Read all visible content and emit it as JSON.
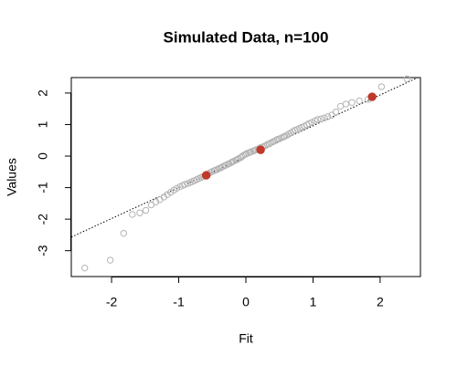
{
  "chart_data": {
    "type": "scatter",
    "title": "Simulated Data, n=100",
    "xlabel": "Fit",
    "ylabel": "Values",
    "xlim": [
      -2.6,
      2.6
    ],
    "ylim": [
      -3.82,
      2.49
    ],
    "xticks": [
      -2,
      -1,
      0,
      1,
      2
    ],
    "yticks": [
      -3,
      -2,
      -1,
      0,
      1,
      2
    ],
    "abline": {
      "intercept": -0.02,
      "slope": 0.98,
      "color": "#000000",
      "style": "dotted"
    },
    "series": [
      {
        "color": "#b4b4b4",
        "marker": "open-circle",
        "x": [
          -2.4,
          -2.02,
          -1.82,
          -1.69,
          -1.58,
          -1.49,
          -1.41,
          -1.34,
          -1.28,
          -1.22,
          -1.17,
          -1.12,
          -1.07,
          -1.03,
          -0.98,
          -0.94,
          -0.91,
          -0.87,
          -0.83,
          -0.8,
          -0.77,
          -0.73,
          -0.7,
          -0.67,
          -0.64,
          -0.61,
          -0.58,
          -0.56,
          -0.53,
          -0.5,
          -0.47,
          -0.45,
          -0.42,
          -0.4,
          -0.37,
          -0.35,
          -0.32,
          -0.3,
          -0.27,
          -0.25,
          -0.22,
          -0.2,
          -0.18,
          -0.15,
          -0.13,
          -0.11,
          -0.08,
          -0.06,
          -0.04,
          -0.01,
          0.01,
          0.04,
          0.06,
          0.08,
          0.11,
          0.13,
          0.15,
          0.18,
          0.2,
          0.22,
          0.25,
          0.27,
          0.3,
          0.32,
          0.35,
          0.37,
          0.4,
          0.42,
          0.45,
          0.47,
          0.5,
          0.53,
          0.56,
          0.58,
          0.61,
          0.64,
          0.67,
          0.7,
          0.73,
          0.77,
          0.8,
          0.83,
          0.87,
          0.91,
          0.94,
          0.98,
          1.03,
          1.07,
          1.12,
          1.17,
          1.22,
          1.28,
          1.34,
          1.41,
          1.49,
          1.58,
          1.69,
          1.82,
          2.02,
          2.4
        ],
        "values": [
          -3.55,
          -3.3,
          -2.45,
          -1.85,
          -1.8,
          -1.72,
          -1.55,
          -1.45,
          -1.38,
          -1.3,
          -1.22,
          -1.15,
          -1.08,
          -1.02,
          -0.97,
          -0.93,
          -0.9,
          -0.87,
          -0.84,
          -0.81,
          -0.78,
          -0.74,
          -0.71,
          -0.68,
          -0.65,
          -0.62,
          -0.59,
          -0.56,
          -0.52,
          -0.49,
          -0.46,
          -0.44,
          -0.42,
          -0.39,
          -0.37,
          -0.34,
          -0.31,
          -0.29,
          -0.26,
          -0.24,
          -0.21,
          -0.18,
          -0.16,
          -0.13,
          -0.11,
          -0.08,
          -0.05,
          -0.02,
          0.02,
          0.05,
          0.08,
          0.1,
          0.12,
          0.14,
          0.16,
          0.18,
          0.2,
          0.22,
          0.24,
          0.27,
          0.29,
          0.31,
          0.34,
          0.37,
          0.39,
          0.42,
          0.45,
          0.47,
          0.5,
          0.53,
          0.55,
          0.58,
          0.61,
          0.63,
          0.66,
          0.7,
          0.74,
          0.78,
          0.82,
          0.85,
          0.88,
          0.91,
          0.95,
          0.99,
          1.03,
          1.07,
          1.12,
          1.16,
          1.18,
          1.21,
          1.25,
          1.3,
          1.4,
          1.58,
          1.65,
          1.7,
          1.75,
          1.8,
          2.2,
          2.45
        ]
      },
      {
        "color": "#c0392b",
        "marker": "filled-circle",
        "x": [
          -0.59,
          0.22,
          1.88
        ],
        "values": [
          -0.61,
          0.2,
          1.88
        ]
      }
    ]
  }
}
